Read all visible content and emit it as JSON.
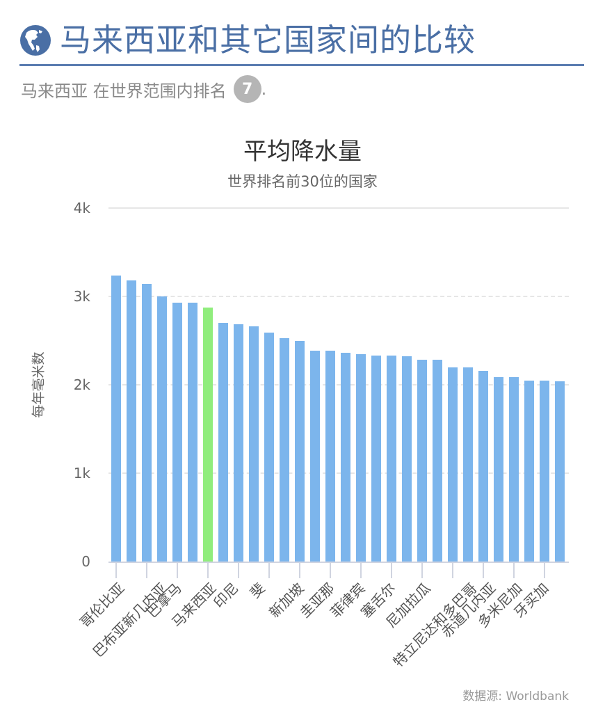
{
  "header": {
    "icon": "globe-icon",
    "title": "马来西亚和其它国家间的比较",
    "rank_text": "马来西亚 在世界范围内排名",
    "rank_value": "7",
    "rank_suffix": "."
  },
  "colors": {
    "title": "#4a6fa5",
    "bar": "#7cb5ec",
    "highlight": "#90ed7d",
    "badge": "#b5b5b5"
  },
  "footer": {
    "source": "数据源: Worldbank"
  },
  "chart_data": {
    "type": "bar",
    "title": "平均降水量",
    "subtitle": "世界排名前30位的国家",
    "xlabel": "",
    "ylabel": "每年毫米数",
    "ylim": [
      0,
      4000
    ],
    "yticks": [
      "0",
      "1k",
      "2k",
      "3k",
      "4k"
    ],
    "grid": true,
    "legend": "none",
    "highlight_index": 6,
    "categories": [
      "哥伦比亚",
      "",
      "巴布亚新几内亚",
      "",
      "巴拿马",
      "",
      "马来西亚",
      "",
      "印尼",
      "",
      "斐",
      "",
      "新加坡",
      "",
      "圭亚那",
      "",
      "菲律宾",
      "",
      "塞舌尔",
      "",
      "尼加拉瓜",
      "",
      "特立尼达和多巴哥",
      "",
      "赤道几内亚",
      "",
      "多米尼加",
      "",
      "牙买加",
      ""
    ],
    "visible_labels": [
      "哥伦比亚",
      "巴布亚新几内亚",
      "巴拿马",
      "马来西亚",
      "印尼",
      "斐",
      "新加坡",
      "圭亚那",
      "菲律宾",
      "塞舌尔",
      "尼加拉瓜",
      "特立尼达和多巴哥",
      "赤道几内亚",
      "多米尼加",
      "牙买加"
    ],
    "values": [
      3240,
      3180,
      3142,
      3000,
      2928,
      2926,
      2875,
      2702,
      2684,
      2660,
      2592,
      2526,
      2497,
      2387,
      2387,
      2360,
      2348,
      2330,
      2330,
      2320,
      2280,
      2280,
      2200,
      2200,
      2156,
      2090,
      2090,
      2051,
      2051,
      2040
    ]
  }
}
